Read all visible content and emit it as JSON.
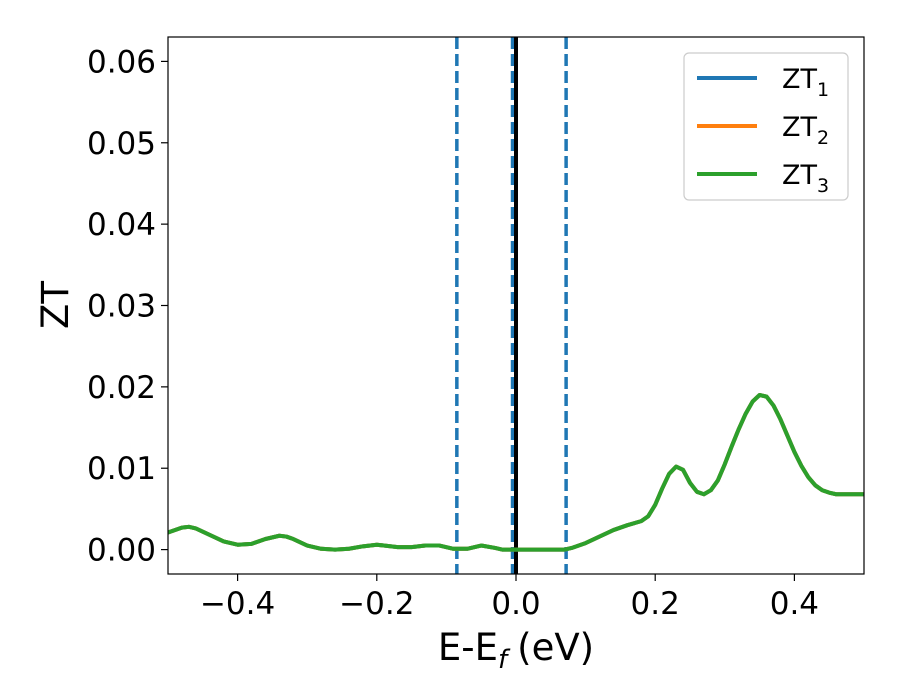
{
  "chart_data": {
    "type": "line",
    "title": "",
    "xlabel": "E-E",
    "xlabel_sub": "f",
    "xlabel_unit": "(eV)",
    "ylabel": "ZT",
    "xlim": [
      -0.5,
      0.5
    ],
    "ylim": [
      -0.003,
      0.063
    ],
    "xticks": [
      -0.4,
      -0.2,
      0.0,
      0.2,
      0.4
    ],
    "xtick_labels": [
      "−0.4",
      "−0.2",
      "0.0",
      "0.2",
      "0.4"
    ],
    "yticks": [
      0.0,
      0.01,
      0.02,
      0.03,
      0.04,
      0.05,
      0.06
    ],
    "ytick_labels": [
      "0.00",
      "0.01",
      "0.02",
      "0.03",
      "0.04",
      "0.05",
      "0.06"
    ],
    "grid": false,
    "legend_position": "top-right",
    "vlines": [
      {
        "x": -0.085,
        "style": "dashed",
        "color": "#1f77b4"
      },
      {
        "x": -0.005,
        "style": "dashed",
        "color": "#1f77b4"
      },
      {
        "x": 0.0,
        "style": "solid",
        "color": "#000000"
      },
      {
        "x": 0.072,
        "style": "dashed",
        "color": "#1f77b4"
      }
    ],
    "x": [
      -0.5,
      -0.48,
      -0.47,
      -0.46,
      -0.44,
      -0.42,
      -0.4,
      -0.38,
      -0.36,
      -0.34,
      -0.33,
      -0.32,
      -0.3,
      -0.28,
      -0.26,
      -0.24,
      -0.22,
      -0.2,
      -0.19,
      -0.17,
      -0.15,
      -0.13,
      -0.11,
      -0.1,
      -0.09,
      -0.07,
      -0.05,
      -0.03,
      -0.02,
      -0.01,
      0.0,
      0.02,
      0.04,
      0.06,
      0.07,
      0.08,
      0.1,
      0.12,
      0.14,
      0.16,
      0.18,
      0.19,
      0.2,
      0.21,
      0.22,
      0.23,
      0.24,
      0.25,
      0.26,
      0.27,
      0.28,
      0.29,
      0.3,
      0.31,
      0.32,
      0.33,
      0.34,
      0.35,
      0.36,
      0.37,
      0.38,
      0.39,
      0.4,
      0.41,
      0.42,
      0.43,
      0.44,
      0.45,
      0.46,
      0.47,
      0.48,
      0.49,
      0.5
    ],
    "series": [
      {
        "name": "ZT",
        "name_sub": "1",
        "color": "#1f77b4",
        "values": [
          0.0021,
          0.0027,
          0.0028,
          0.0026,
          0.0018,
          0.001,
          0.0006,
          0.0007,
          0.0013,
          0.0017,
          0.0016,
          0.0013,
          0.0005,
          0.0001,
          0.0,
          0.0001,
          0.0004,
          0.0006,
          0.0005,
          0.0003,
          0.0003,
          0.0005,
          0.0005,
          0.0003,
          0.0001,
          0.0001,
          0.0005,
          0.0002,
          0.0,
          0.0,
          0.0,
          0.0,
          0.0,
          0.0,
          0.0,
          0.0002,
          0.0008,
          0.0016,
          0.0024,
          0.003,
          0.0035,
          0.0041,
          0.0055,
          0.0075,
          0.0093,
          0.0102,
          0.0098,
          0.0082,
          0.0071,
          0.0068,
          0.0073,
          0.0085,
          0.0105,
          0.0127,
          0.0148,
          0.0167,
          0.0182,
          0.019,
          0.0188,
          0.0177,
          0.016,
          0.014,
          0.012,
          0.0103,
          0.0089,
          0.0079,
          0.0073,
          0.007,
          0.0068,
          0.0068,
          0.0068,
          0.0068,
          0.0068
        ]
      },
      {
        "name": "ZT",
        "name_sub": "2",
        "color": "#ff7f0e",
        "values": [
          0.0021,
          0.0027,
          0.0028,
          0.0026,
          0.0018,
          0.001,
          0.0006,
          0.0007,
          0.0013,
          0.0017,
          0.0016,
          0.0013,
          0.0005,
          0.0001,
          0.0,
          0.0001,
          0.0004,
          0.0006,
          0.0005,
          0.0003,
          0.0003,
          0.0005,
          0.0005,
          0.0003,
          0.0001,
          0.0001,
          0.0005,
          0.0002,
          0.0,
          0.0,
          0.0,
          0.0,
          0.0,
          0.0,
          0.0,
          0.0002,
          0.0008,
          0.0016,
          0.0024,
          0.003,
          0.0035,
          0.0041,
          0.0055,
          0.0075,
          0.0093,
          0.0102,
          0.0098,
          0.0082,
          0.0071,
          0.0068,
          0.0073,
          0.0085,
          0.0105,
          0.0127,
          0.0148,
          0.0167,
          0.0182,
          0.019,
          0.0188,
          0.0177,
          0.016,
          0.014,
          0.012,
          0.0103,
          0.0089,
          0.0079,
          0.0073,
          0.007,
          0.0068,
          0.0068,
          0.0068,
          0.0068,
          0.0068
        ]
      },
      {
        "name": "ZT",
        "name_sub": "3",
        "color": "#2ca02c",
        "values": [
          0.0021,
          0.0027,
          0.0028,
          0.0026,
          0.0018,
          0.001,
          0.0006,
          0.0007,
          0.0013,
          0.0017,
          0.0016,
          0.0013,
          0.0005,
          0.0001,
          0.0,
          0.0001,
          0.0004,
          0.0006,
          0.0005,
          0.0003,
          0.0003,
          0.0005,
          0.0005,
          0.0003,
          0.0001,
          0.0001,
          0.0005,
          0.0002,
          0.0,
          0.0,
          0.0,
          0.0,
          0.0,
          0.0,
          0.0,
          0.0002,
          0.0008,
          0.0016,
          0.0024,
          0.003,
          0.0035,
          0.0041,
          0.0055,
          0.0075,
          0.0093,
          0.0102,
          0.0098,
          0.0082,
          0.0071,
          0.0068,
          0.0073,
          0.0085,
          0.0105,
          0.0127,
          0.0148,
          0.0167,
          0.0182,
          0.019,
          0.0188,
          0.0177,
          0.016,
          0.014,
          0.012,
          0.0103,
          0.0089,
          0.0079,
          0.0073,
          0.007,
          0.0068,
          0.0068,
          0.0068,
          0.0068,
          0.0068
        ]
      }
    ]
  }
}
